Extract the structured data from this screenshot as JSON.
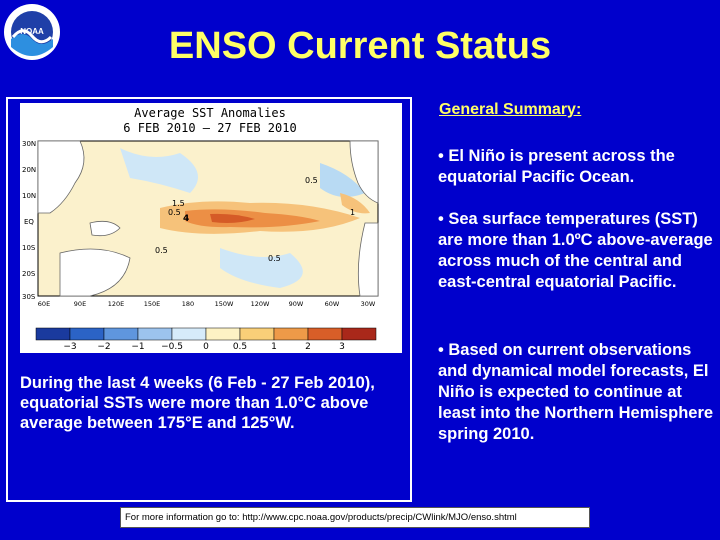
{
  "header": {
    "logo_label": "NOAA",
    "title": "ENSO Current Status"
  },
  "map": {
    "title_line1": "Average SST Anomalies",
    "title_line2": "6 FEB 2010 – 27 FEB 2010",
    "lat_labels": [
      "30N",
      "20N",
      "10N",
      "EQ",
      "10S",
      "20S",
      "30S"
    ],
    "lon_labels": [
      "60E",
      "90E",
      "120E",
      "150E",
      "180",
      "150W",
      "120W",
      "90W",
      "60W",
      "30W"
    ],
    "colorbar_labels": [
      "−3",
      "−2",
      "−1",
      "−0.5",
      "0",
      "0.5",
      "1",
      "2",
      "3"
    ],
    "colorbar_colors": [
      "#1a3a9e",
      "#2b63c6",
      "#5f96de",
      "#9cc3ee",
      "#d6ebfa",
      "#fdf2c4",
      "#f9cf78",
      "#ee9a48",
      "#d85e28",
      "#a9281a"
    ],
    "contour_labels": [
      "0.5",
      "1.5",
      "4",
      "0.5",
      "0.5",
      "0.5",
      "1"
    ]
  },
  "caption": "During the last 4 weeks (6 Feb - 27 Feb 2010), equatorial SSTs were more than 1.0°C above average between 175°E and 125°W.",
  "summary": {
    "heading": "General Summary:",
    "bullets": [
      "• El Niño is present across the equatorial Pacific Ocean.",
      "• Sea surface temperatures (SST) are more than 1.0ºC above-average across much of the central and east-central equatorial Pacific.",
      "• Based on current observations and dynamical model forecasts, El Niño is expected to continue at least into the Northern Hemisphere spring 2010."
    ]
  },
  "footer": "For more information go to: http://www.cpc.noaa.gov/products/precip/CWlink/MJO/enso.shtml"
}
